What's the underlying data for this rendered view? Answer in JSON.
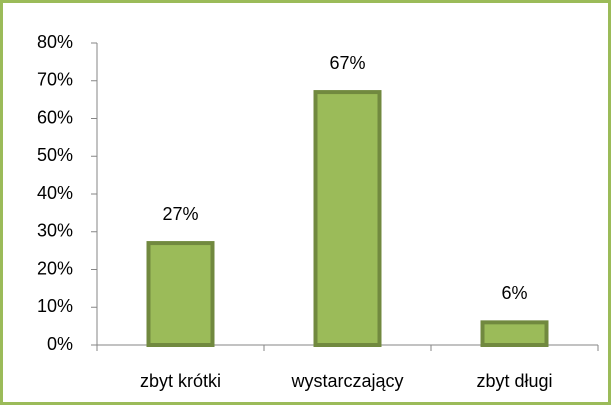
{
  "chart_data": {
    "type": "bar",
    "categories": [
      "zbyt krótki",
      "wystarczający",
      "zbyt długi"
    ],
    "values": [
      27,
      67,
      6
    ],
    "value_labels": [
      "27%",
      "67%",
      "6%"
    ],
    "color": "#9bbb59",
    "ylim": [
      0,
      80
    ],
    "yticks": [
      {
        "value": 0,
        "label": "0%"
      },
      {
        "value": 10,
        "label": "10%"
      },
      {
        "value": 20,
        "label": "20%"
      },
      {
        "value": 30,
        "label": "30%"
      },
      {
        "value": 40,
        "label": "40%"
      },
      {
        "value": 50,
        "label": "50%"
      },
      {
        "value": 60,
        "label": "60%"
      },
      {
        "value": 70,
        "label": "70%"
      },
      {
        "value": 80,
        "label": "80%"
      }
    ],
    "grid": false
  }
}
